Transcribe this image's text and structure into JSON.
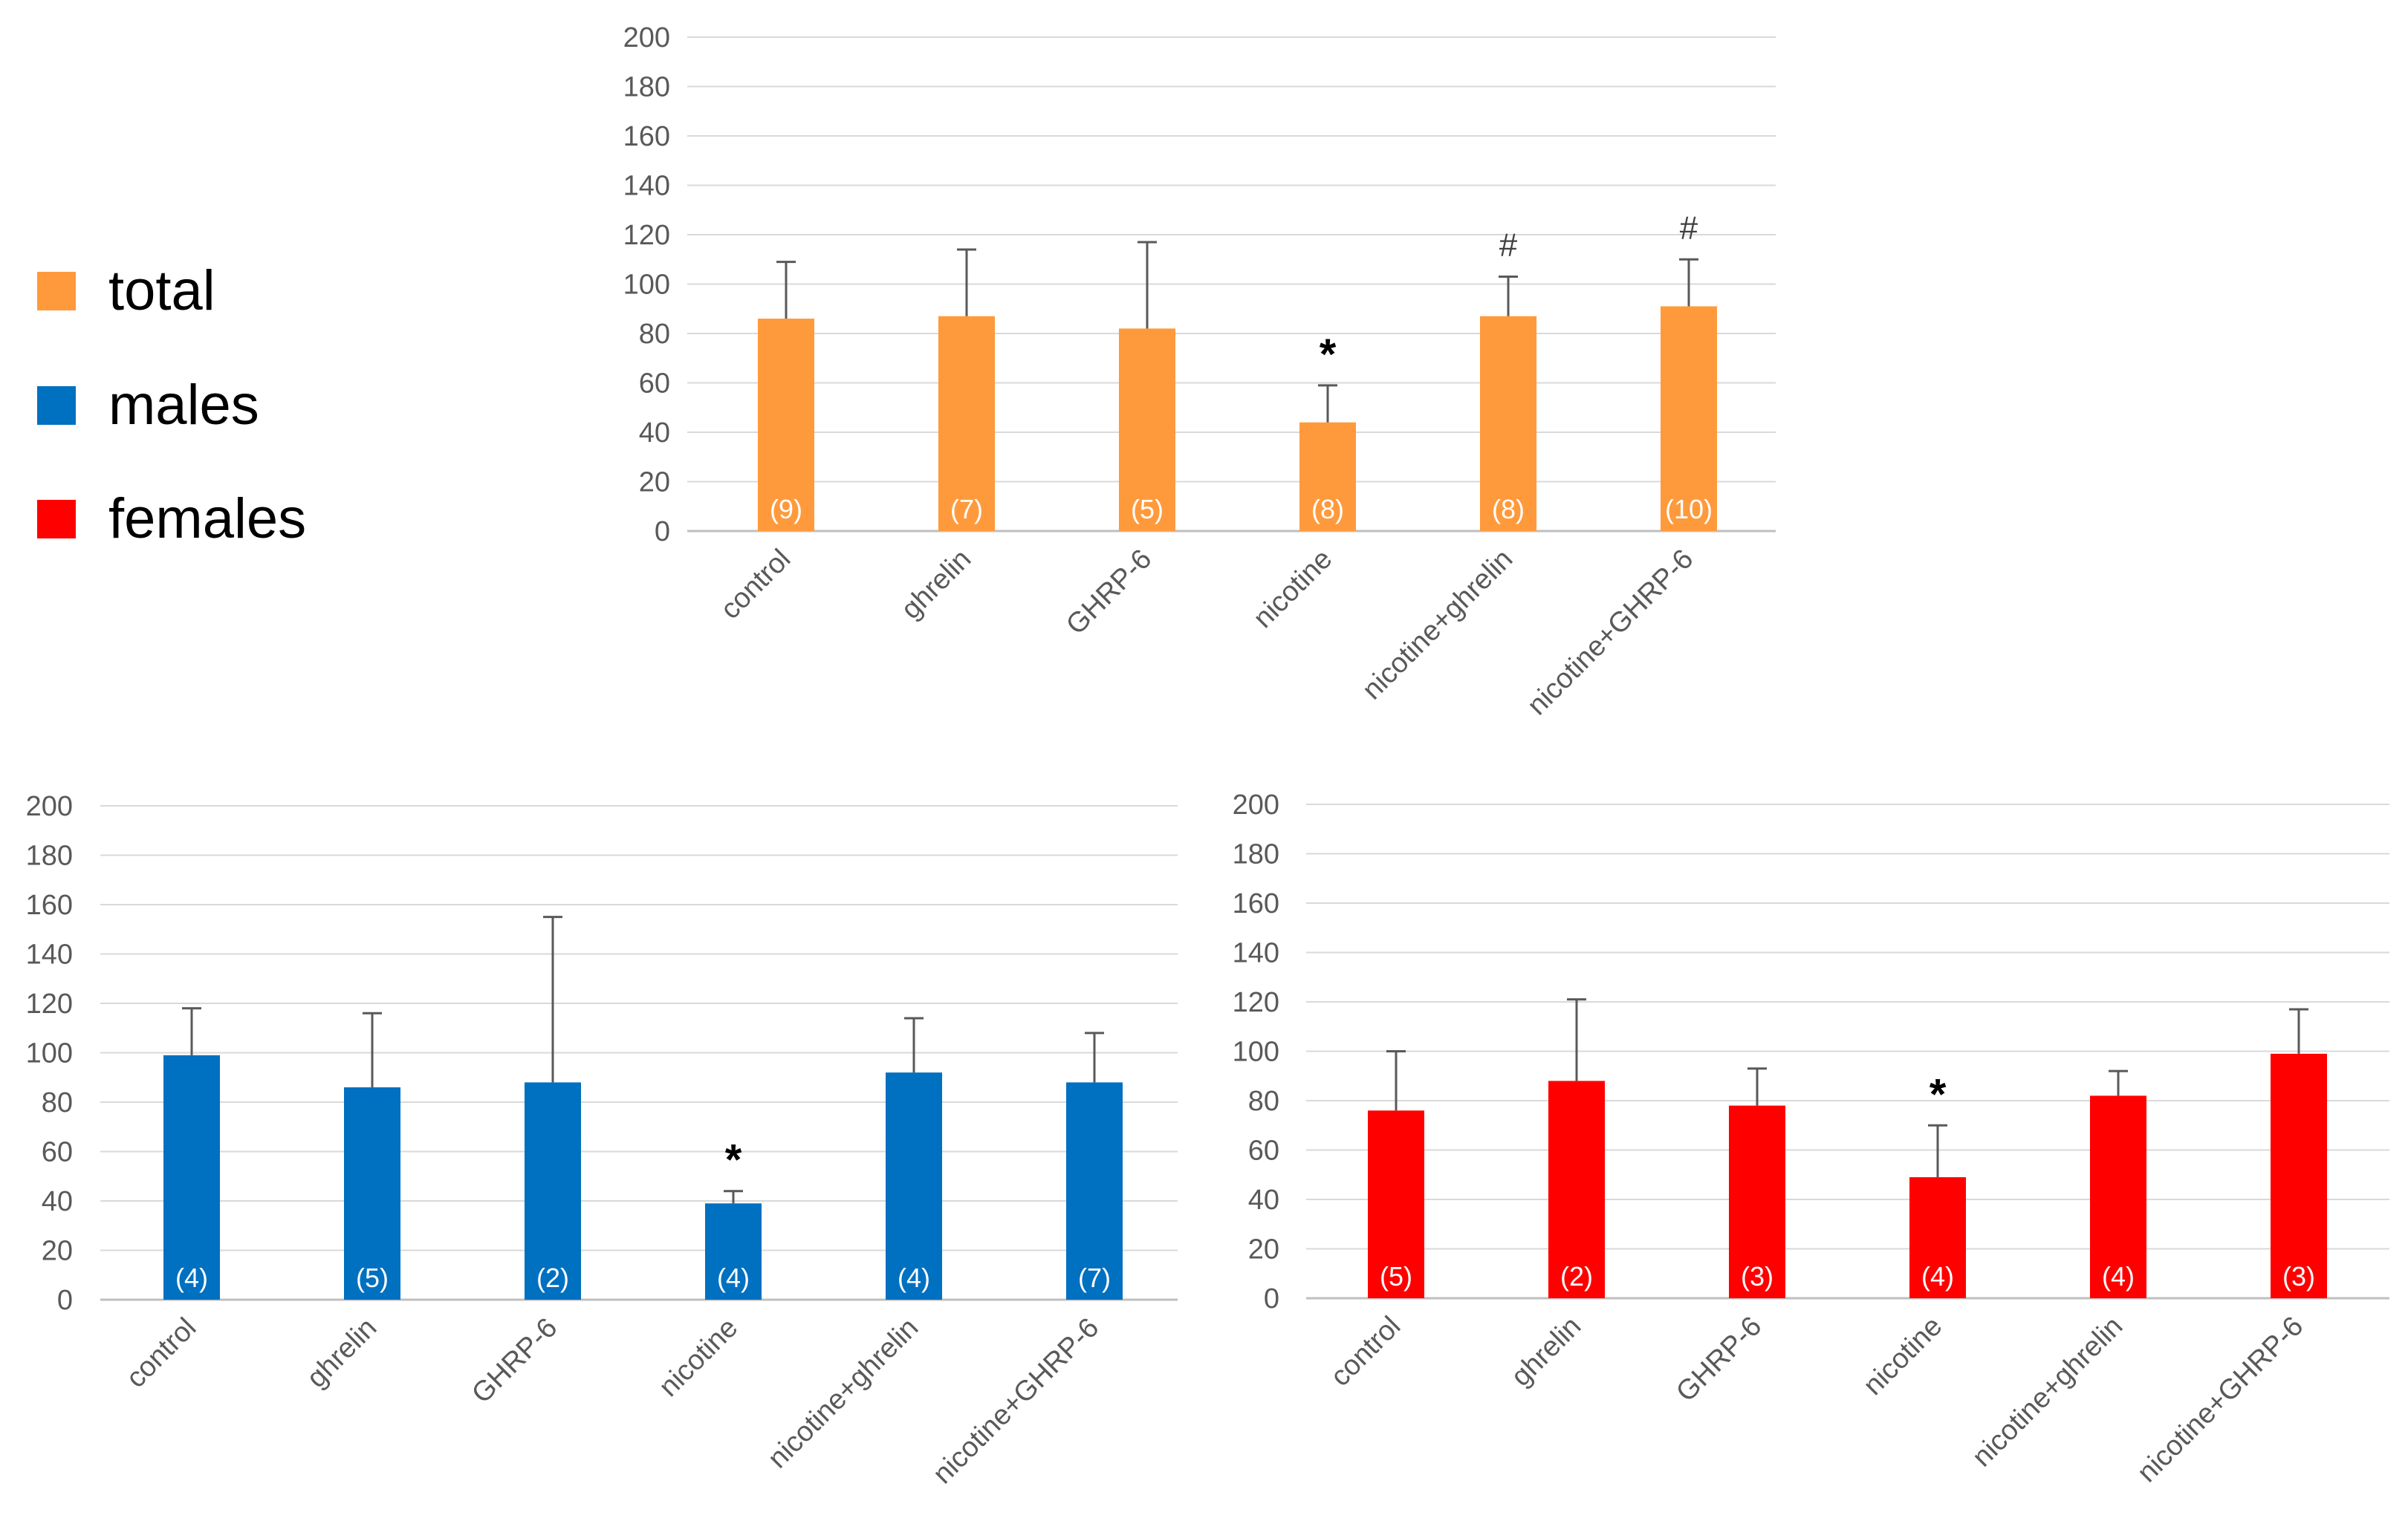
{
  "legend": {
    "items": [
      {
        "label": "total",
        "color": "#FF9A3C"
      },
      {
        "label": "males",
        "color": "#0070C0"
      },
      {
        "label": "females",
        "color": "#FF0000"
      }
    ]
  },
  "chart_data": [
    {
      "type": "bar",
      "name": "total",
      "color": "#FF9A3C",
      "categories": [
        "control",
        "ghrelin",
        "GHRP-6",
        "nicotine",
        "nicotine+ghrelin",
        "nicotine+GHRP-6"
      ],
      "values": [
        86,
        87,
        82,
        44,
        87,
        91
      ],
      "errors": [
        23,
        27,
        35,
        15,
        16,
        19
      ],
      "n_labels": [
        "(9)",
        "(7)",
        "(5)",
        "(8)",
        "(8)",
        "(10)"
      ],
      "annotations": [
        "",
        "",
        "",
        "*",
        "#",
        "#"
      ],
      "yticks": [
        "0",
        "20",
        "40",
        "60",
        "80",
        "100",
        "120",
        "140",
        "160",
        "180",
        "200"
      ],
      "ylim": [
        0,
        200
      ],
      "title": "",
      "xlabel": "",
      "ylabel": "",
      "grid": true
    },
    {
      "type": "bar",
      "name": "males",
      "color": "#0070C0",
      "categories": [
        "control",
        "ghrelin",
        "GHRP-6",
        "nicotine",
        "nicotine+ghrelin",
        "nicotine+GHRP-6"
      ],
      "values": [
        99,
        86,
        88,
        39,
        92,
        88
      ],
      "errors": [
        19,
        30,
        67,
        5,
        22,
        20
      ],
      "n_labels": [
        "(4)",
        "(5)",
        "(2)",
        "(4)",
        "(4)",
        "(7)"
      ],
      "annotations": [
        "",
        "",
        "",
        "*",
        "",
        ""
      ],
      "yticks": [
        "0",
        "20",
        "40",
        "60",
        "80",
        "100",
        "120",
        "140",
        "160",
        "180",
        "200"
      ],
      "ylim": [
        0,
        200
      ],
      "title": "",
      "xlabel": "",
      "ylabel": "",
      "grid": true
    },
    {
      "type": "bar",
      "name": "females",
      "color": "#FF0000",
      "categories": [
        "control",
        "ghrelin",
        "GHRP-6",
        "nicotine",
        "nicotine+ghrelin",
        "nicotine+GHRP-6"
      ],
      "values": [
        76,
        88,
        78,
        49,
        82,
        99
      ],
      "errors": [
        24,
        33,
        15,
        21,
        10,
        18
      ],
      "n_labels": [
        "(5)",
        "(2)",
        "(3)",
        "(4)",
        "(4)",
        "(3)"
      ],
      "annotations": [
        "",
        "",
        "",
        "*",
        "",
        ""
      ],
      "yticks": [
        "0",
        "20",
        "40",
        "60",
        "80",
        "100",
        "120",
        "140",
        "160",
        "180",
        "200"
      ],
      "ylim": [
        0,
        200
      ],
      "title": "",
      "xlabel": "",
      "ylabel": "",
      "grid": true
    }
  ]
}
